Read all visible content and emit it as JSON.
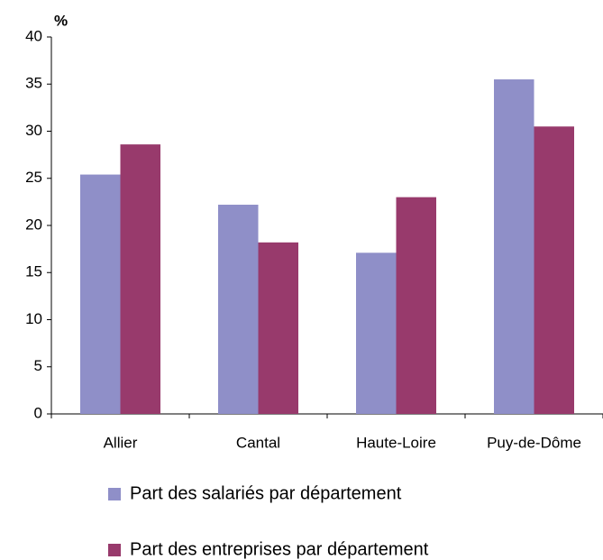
{
  "chart_data": {
    "type": "bar",
    "y_label": "%",
    "categories": [
      "Allier",
      "Cantal",
      "Haute-Loire",
      "Puy-de-Dôme"
    ],
    "series": [
      {
        "name": "Part des salariés par département",
        "color": "#8f8fc8",
        "values": [
          25.4,
          22.2,
          17.1,
          35.5
        ]
      },
      {
        "name": "Part des entreprises par département",
        "color": "#983a6c",
        "values": [
          28.6,
          18.2,
          23.0,
          30.5
        ]
      }
    ],
    "ylim": [
      0,
      40
    ],
    "yticks": [
      0,
      5,
      10,
      15,
      20,
      25,
      30,
      35,
      40
    ],
    "grid": false
  }
}
